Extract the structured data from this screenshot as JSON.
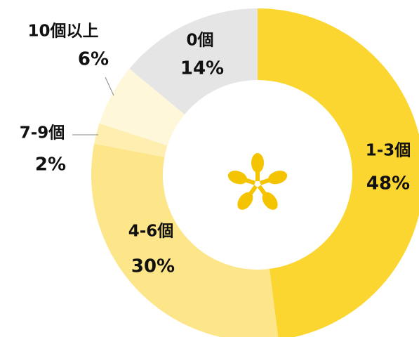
{
  "chart_data": {
    "type": "donut",
    "categories": [
      "1-3個",
      "4-6個",
      "7-9個",
      "10個以上",
      "0個"
    ],
    "values": [
      48,
      30,
      2,
      6,
      14
    ],
    "value_labels": [
      "48%",
      "30%",
      "2%",
      "6%",
      "14%"
    ],
    "colors": [
      "#fbd631",
      "#fde589",
      "#feeeaf",
      "#fef7d9",
      "#e5e5e5"
    ]
  }
}
